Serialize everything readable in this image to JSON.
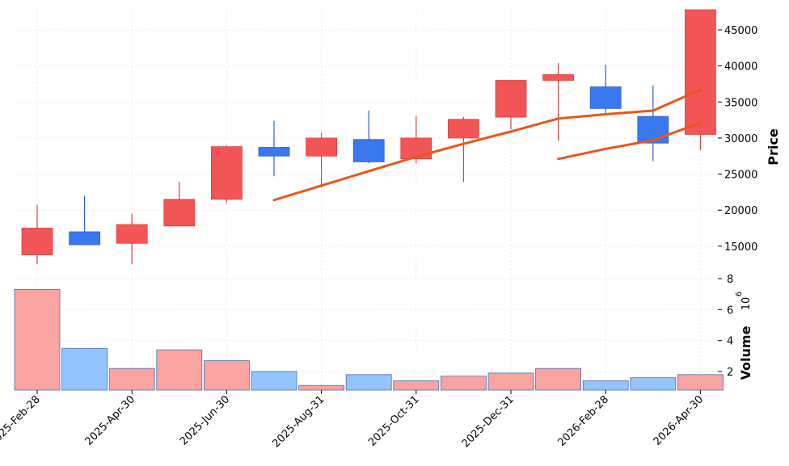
{
  "chart_data": {
    "type": "candlestick",
    "dates": [
      "2025-Feb-28",
      "2025-Mar-31",
      "2025-Apr-30",
      "2025-May-31",
      "2025-Jun-30",
      "2025-Jul-31",
      "2025-Aug-31",
      "2025-Sep-30",
      "2025-Oct-31",
      "2025-Nov-30",
      "2025-Dec-31",
      "2026-Jan-31",
      "2026-Feb-28",
      "2026-Mar-31",
      "2026-Apr-30"
    ],
    "x_tick_labels": [
      "2025-Feb-28",
      "2025-Apr-30",
      "2025-Jun-30",
      "2025-Aug-31",
      "2025-Oct-31",
      "2025-Dec-31",
      "2026-Feb-28",
      "2026-Apr-30"
    ],
    "x_tick_indices": [
      0,
      2,
      4,
      6,
      8,
      10,
      12,
      14
    ],
    "ohlc": [
      {
        "open": 13800,
        "high": 20700,
        "low": 12500,
        "close": 17500
      },
      {
        "open": 17000,
        "high": 22000,
        "low": 15200,
        "close": 15200
      },
      {
        "open": 15400,
        "high": 19500,
        "low": 12500,
        "close": 18000
      },
      {
        "open": 17800,
        "high": 23900,
        "low": 17800,
        "close": 21500
      },
      {
        "open": 21500,
        "high": 29000,
        "low": 21000,
        "close": 28800
      },
      {
        "open": 28700,
        "high": 32400,
        "low": 24700,
        "close": 27500
      },
      {
        "open": 27500,
        "high": 30700,
        "low": 23100,
        "close": 30000
      },
      {
        "open": 29800,
        "high": 33800,
        "low": 26500,
        "close": 26700
      },
      {
        "open": 27100,
        "high": 33100,
        "low": 26500,
        "close": 30000
      },
      {
        "open": 30000,
        "high": 32900,
        "low": 23900,
        "close": 32600
      },
      {
        "open": 32900,
        "high": 38000,
        "low": 31200,
        "close": 38000
      },
      {
        "open": 38000,
        "high": 40400,
        "low": 29600,
        "close": 38800
      },
      {
        "open": 37100,
        "high": 40200,
        "low": 33300,
        "close": 34100
      },
      {
        "open": 33000,
        "high": 37300,
        "low": 26800,
        "close": 29300
      },
      {
        "open": 30500,
        "high": 48500,
        "low": 28300,
        "close": 48500
      }
    ],
    "moving_averages": [
      {
        "name": "MA short",
        "color": "#e8561c",
        "values": [
          null,
          null,
          null,
          null,
          null,
          21400,
          23400,
          25400,
          27400,
          29200,
          30900,
          32700,
          33300,
          33800,
          36700
        ]
      },
      {
        "name": "MA long",
        "color": "#e8561c",
        "values": [
          null,
          null,
          null,
          null,
          null,
          null,
          null,
          null,
          null,
          null,
          null,
          27100,
          28500,
          29700,
          32100
        ]
      }
    ],
    "volume": [
      7.3,
      3.5,
      2.2,
      3.4,
      2.7,
      2.0,
      1.1,
      1.8,
      1.4,
      1.7,
      1.9,
      2.2,
      1.4,
      1.6,
      1.8
    ],
    "volume_multiplier_label": "10",
    "volume_multiplier_exp": "6",
    "price_ylim": [
      10500,
      47800
    ],
    "price_ticks": [
      15000,
      20000,
      25000,
      30000,
      35000,
      40000,
      45000
    ],
    "volume_ylim": [
      0.8,
      8.0
    ],
    "volume_ticks": [
      2,
      4,
      6,
      8
    ],
    "ylabel_price": "Price",
    "ylabel_volume": "Volume",
    "colors": {
      "up": "#f25555",
      "up_edge": "#e04040",
      "down": "#3a78f0",
      "down_edge": "#2a5fd0",
      "vol_up": "#f9a3a3",
      "vol_up_edge": "#4a6fb0",
      "vol_down": "#93c4fb",
      "vol_down_edge": "#4a6fb0",
      "ma": "#e8561c",
      "grid": "#e6e6e6"
    },
    "grid": true
  }
}
